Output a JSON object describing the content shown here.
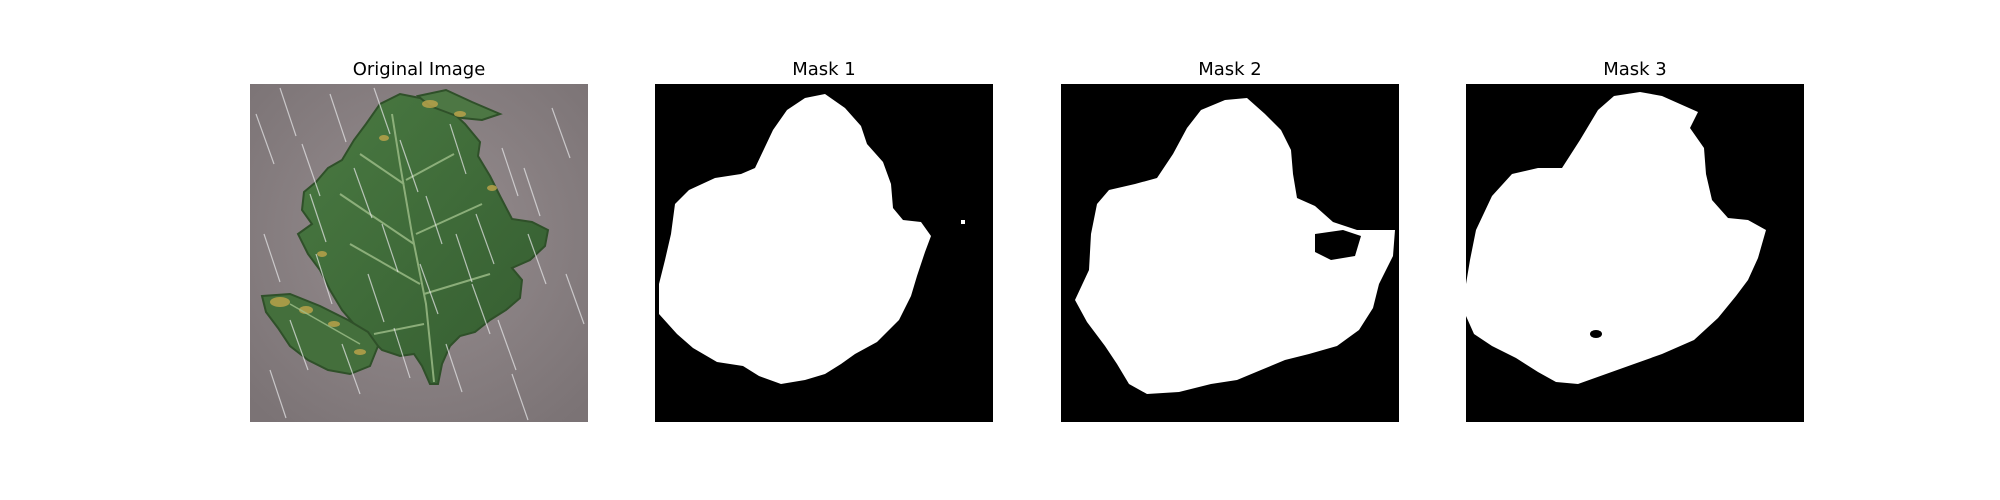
{
  "figure": {
    "panels": [
      {
        "title": "Original Image",
        "kind": "photo"
      },
      {
        "title": "Mask 1",
        "kind": "mask"
      },
      {
        "title": "Mask 2",
        "kind": "mask"
      },
      {
        "title": "Mask 3",
        "kind": "mask"
      }
    ]
  },
  "colors": {
    "background": "#ffffff",
    "mask_background": "#000000",
    "mask_foreground": "#ffffff",
    "ground": "#8d8486",
    "leaf": "#3f6b3a",
    "leaf_light": "#5d8a4f",
    "vein": "#9fbf8a",
    "blight_spot": "#b8a24a",
    "rain_streak": "#e8e8ea"
  }
}
